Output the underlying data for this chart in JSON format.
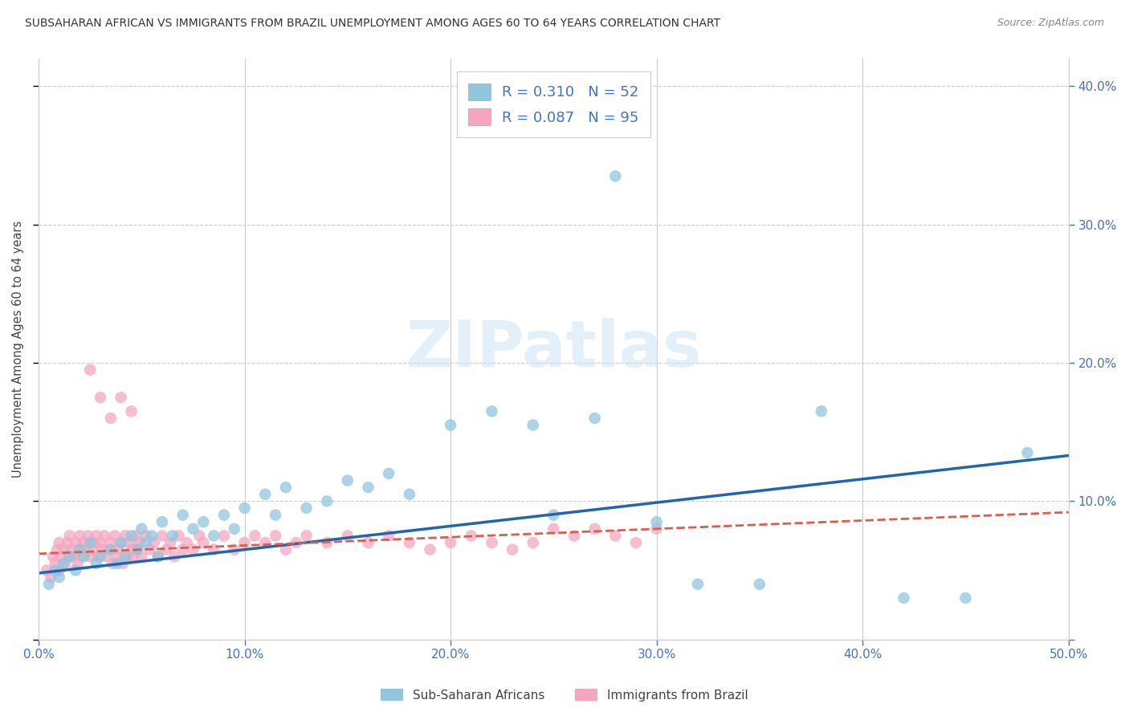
{
  "title": "SUBSAHARAN AFRICAN VS IMMIGRANTS FROM BRAZIL UNEMPLOYMENT AMONG AGES 60 TO 64 YEARS CORRELATION CHART",
  "source": "Source: ZipAtlas.com",
  "ylabel": "Unemployment Among Ages 60 to 64 years",
  "xlim": [
    0.0,
    0.5
  ],
  "ylim": [
    0.0,
    0.42
  ],
  "blue_color": "#92c5de",
  "pink_color": "#f4a6c0",
  "blue_line_color": "#2166ac",
  "pink_line_color": "#d6604d",
  "R_blue": 0.31,
  "N_blue": 52,
  "R_pink": 0.087,
  "N_pink": 95,
  "legend_label_blue": "Sub-Saharan Africans",
  "legend_label_pink": "Immigrants from Brazil",
  "watermark": "ZIPatlas",
  "blue_line_x0": 0.0,
  "blue_line_y0": 0.048,
  "blue_line_x1": 0.5,
  "blue_line_y1": 0.133,
  "pink_line_x0": 0.0,
  "pink_line_y0": 0.062,
  "pink_line_x1": 0.5,
  "pink_line_y1": 0.092,
  "blue_x": [
    0.005,
    0.008,
    0.01,
    0.012,
    0.015,
    0.018,
    0.02,
    0.022,
    0.025,
    0.028,
    0.03,
    0.035,
    0.038,
    0.04,
    0.042,
    0.045,
    0.048,
    0.05,
    0.052,
    0.055,
    0.058,
    0.06,
    0.065,
    0.07,
    0.075,
    0.08,
    0.085,
    0.09,
    0.095,
    0.1,
    0.11,
    0.115,
    0.12,
    0.13,
    0.14,
    0.15,
    0.16,
    0.17,
    0.18,
    0.2,
    0.22,
    0.24,
    0.25,
    0.27,
    0.28,
    0.3,
    0.32,
    0.35,
    0.38,
    0.42,
    0.45,
    0.48
  ],
  "blue_y": [
    0.04,
    0.05,
    0.045,
    0.055,
    0.06,
    0.05,
    0.065,
    0.06,
    0.07,
    0.055,
    0.06,
    0.065,
    0.055,
    0.07,
    0.06,
    0.075,
    0.065,
    0.08,
    0.07,
    0.075,
    0.06,
    0.085,
    0.075,
    0.09,
    0.08,
    0.085,
    0.075,
    0.09,
    0.08,
    0.095,
    0.105,
    0.09,
    0.11,
    0.095,
    0.1,
    0.115,
    0.11,
    0.12,
    0.105,
    0.155,
    0.165,
    0.155,
    0.09,
    0.16,
    0.335,
    0.085,
    0.04,
    0.04,
    0.165,
    0.03,
    0.03,
    0.135
  ],
  "pink_x": [
    0.004,
    0.006,
    0.007,
    0.008,
    0.009,
    0.01,
    0.01,
    0.011,
    0.012,
    0.013,
    0.014,
    0.015,
    0.015,
    0.016,
    0.017,
    0.018,
    0.019,
    0.02,
    0.02,
    0.021,
    0.022,
    0.023,
    0.024,
    0.025,
    0.026,
    0.027,
    0.028,
    0.029,
    0.03,
    0.031,
    0.032,
    0.033,
    0.034,
    0.035,
    0.036,
    0.037,
    0.038,
    0.039,
    0.04,
    0.041,
    0.042,
    0.043,
    0.044,
    0.045,
    0.046,
    0.047,
    0.048,
    0.049,
    0.05,
    0.052,
    0.054,
    0.056,
    0.058,
    0.06,
    0.062,
    0.064,
    0.066,
    0.068,
    0.07,
    0.072,
    0.075,
    0.078,
    0.08,
    0.085,
    0.09,
    0.095,
    0.1,
    0.105,
    0.11,
    0.115,
    0.12,
    0.125,
    0.13,
    0.14,
    0.15,
    0.16,
    0.17,
    0.18,
    0.19,
    0.2,
    0.21,
    0.22,
    0.23,
    0.24,
    0.25,
    0.26,
    0.27,
    0.28,
    0.29,
    0.3,
    0.025,
    0.03,
    0.035,
    0.04,
    0.045
  ],
  "pink_y": [
    0.05,
    0.045,
    0.06,
    0.055,
    0.065,
    0.05,
    0.07,
    0.06,
    0.065,
    0.055,
    0.07,
    0.06,
    0.075,
    0.065,
    0.06,
    0.07,
    0.055,
    0.065,
    0.075,
    0.06,
    0.07,
    0.065,
    0.075,
    0.06,
    0.065,
    0.07,
    0.075,
    0.06,
    0.07,
    0.065,
    0.075,
    0.06,
    0.065,
    0.07,
    0.055,
    0.075,
    0.06,
    0.065,
    0.07,
    0.055,
    0.075,
    0.06,
    0.07,
    0.065,
    0.06,
    0.075,
    0.065,
    0.07,
    0.06,
    0.075,
    0.065,
    0.07,
    0.06,
    0.075,
    0.065,
    0.07,
    0.06,
    0.075,
    0.065,
    0.07,
    0.065,
    0.075,
    0.07,
    0.065,
    0.075,
    0.065,
    0.07,
    0.075,
    0.07,
    0.075,
    0.065,
    0.07,
    0.075,
    0.07,
    0.075,
    0.07,
    0.075,
    0.07,
    0.065,
    0.07,
    0.075,
    0.07,
    0.065,
    0.07,
    0.08,
    0.075,
    0.08,
    0.075,
    0.07,
    0.08,
    0.195,
    0.175,
    0.16,
    0.175,
    0.165
  ]
}
